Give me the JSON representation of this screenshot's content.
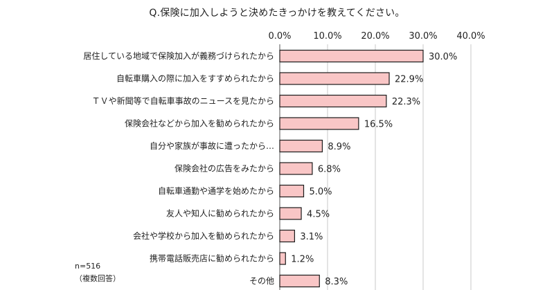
{
  "chart_data": {
    "type": "bar",
    "orientation": "horizontal",
    "title": "Q.保険に加入しようと決めたきっかけを教えてください。",
    "xlim": [
      0,
      40
    ],
    "x_ticks": [
      "0.0%",
      "10.0%",
      "20.0%",
      "30.0%",
      "40.0%"
    ],
    "grid": true,
    "categories": [
      "居住している地域で保険加入が義務づけられたから",
      "自転車購入の際に加入をすすめられたから",
      "ＴＶや新聞等で自転車事故のニュースを見たから",
      "保険会社などから加入を勧められたから",
      "自分や家族が事故に遭ったから…",
      "保険会社の広告をみたから",
      "自転車通勤や通学を始めたから",
      "友人や知人に勧められたから",
      "会社や学校から加入を勧められたから",
      "携帯電話販売店に勧められたから",
      "その他"
    ],
    "values": [
      30.0,
      22.9,
      22.3,
      16.5,
      8.9,
      6.8,
      5.0,
      4.5,
      3.1,
      1.2,
      8.3
    ],
    "value_labels": [
      "30.0%",
      "22.9%",
      "22.3%",
      "16.5%",
      "8.9%",
      "6.8%",
      "5.0%",
      "4.5%",
      "3.1%",
      "1.2%",
      "8.3%"
    ],
    "bar_color": "#f9c6c6",
    "bar_stroke": "#1a1a1a",
    "grid_color": "#c8c8c8"
  },
  "notes": {
    "sample": "n=516",
    "multi": "（複数回答）"
  }
}
